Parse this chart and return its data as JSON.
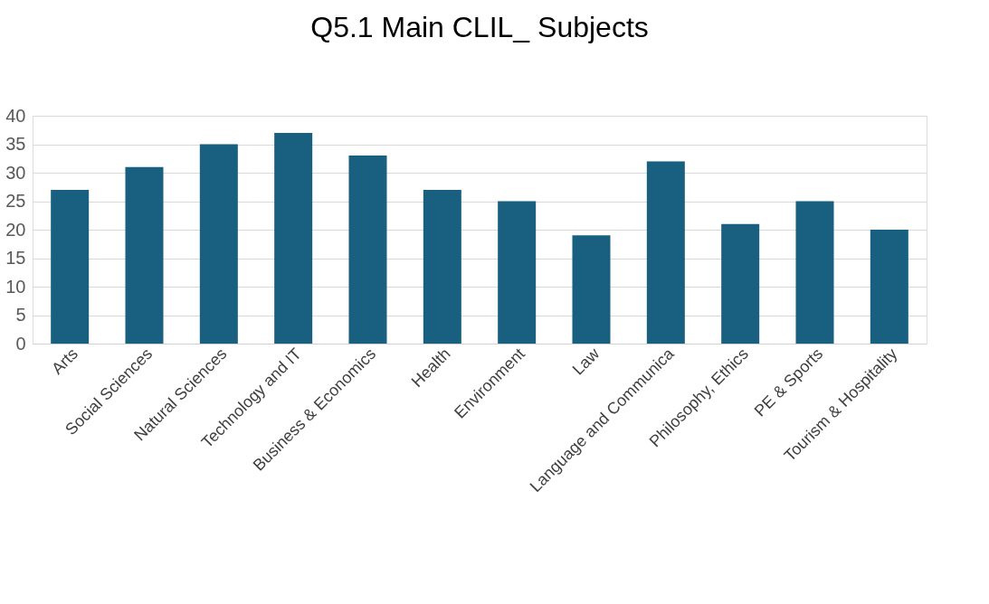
{
  "chart_data": {
    "type": "bar",
    "title": "Q5.1 Main CLIL_ Subjects",
    "categories": [
      "Arts",
      "Social Sciences",
      "Natural Sciences",
      "Technology and IT",
      "Business & Economics",
      "Health",
      "Environment",
      "Law",
      "Language and Communica",
      "Philosophy, Ethics",
      "PE & Sports",
      "Tourism & Hospitality"
    ],
    "values": [
      27,
      31,
      35,
      37,
      33,
      27,
      25,
      19,
      32,
      21,
      25,
      20
    ],
    "color": "#195f80",
    "ylim": [
      0,
      40
    ],
    "yticks": [
      0,
      5,
      10,
      15,
      20,
      25,
      30,
      35,
      40
    ],
    "grid": "y"
  }
}
